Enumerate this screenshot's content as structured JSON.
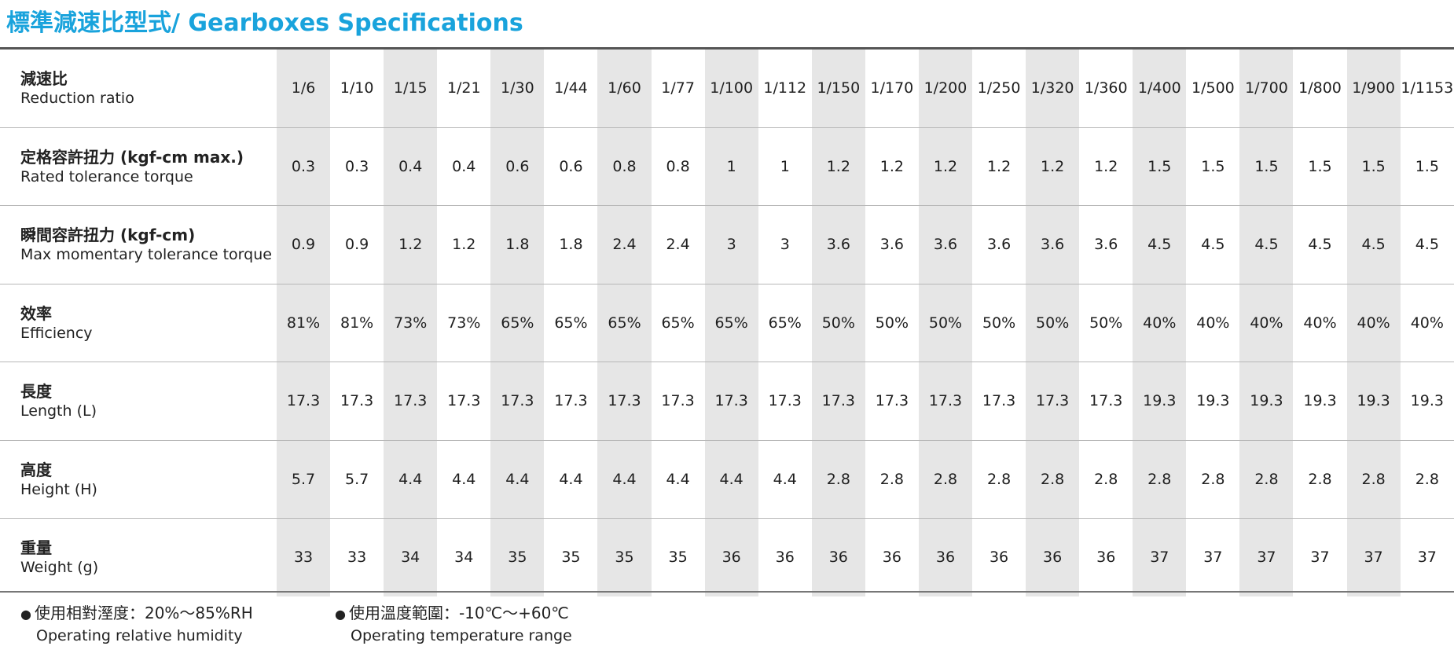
{
  "title": "標準減速比型式/ Gearboxes Specifications",
  "columns": [
    "1/6",
    "1/10",
    "1/15",
    "1/21",
    "1/30",
    "1/44",
    "1/60",
    "1/77",
    "1/100",
    "1/112",
    "1/150",
    "1/170",
    "1/200",
    "1/250",
    "1/320",
    "1/360",
    "1/400",
    "1/500",
    "1/700",
    "1/800",
    "1/900",
    "1/1153"
  ],
  "rows": [
    {
      "label_zh": "減速比",
      "label_en": "Reduction ratio"
    },
    {
      "label_zh": "定格容許扭力 (kgf-cm max.)",
      "label_en": "Rated tolerance torque",
      "values": [
        "0.3",
        "0.3",
        "0.4",
        "0.4",
        "0.6",
        "0.6",
        "0.8",
        "0.8",
        "1",
        "1",
        "1.2",
        "1.2",
        "1.2",
        "1.2",
        "1.2",
        "1.2",
        "1.5",
        "1.5",
        "1.5",
        "1.5",
        "1.5",
        "1.5"
      ]
    },
    {
      "label_zh": "瞬間容許扭力 (kgf-cm)",
      "label_en": "Max momentary tolerance torque",
      "values": [
        "0.9",
        "0.9",
        "1.2",
        "1.2",
        "1.8",
        "1.8",
        "2.4",
        "2.4",
        "3",
        "3",
        "3.6",
        "3.6",
        "3.6",
        "3.6",
        "3.6",
        "3.6",
        "4.5",
        "4.5",
        "4.5",
        "4.5",
        "4.5",
        "4.5"
      ]
    },
    {
      "label_zh": "效率",
      "label_en": "Efficiency",
      "values": [
        "81%",
        "81%",
        "73%",
        "73%",
        "65%",
        "65%",
        "65%",
        "65%",
        "65%",
        "65%",
        "50%",
        "50%",
        "50%",
        "50%",
        "50%",
        "50%",
        "40%",
        "40%",
        "40%",
        "40%",
        "40%",
        "40%"
      ]
    },
    {
      "label_zh": "長度",
      "label_en": "Length (L)",
      "values": [
        "17.3",
        "17.3",
        "17.3",
        "17.3",
        "17.3",
        "17.3",
        "17.3",
        "17.3",
        "17.3",
        "17.3",
        "17.3",
        "17.3",
        "17.3",
        "17.3",
        "17.3",
        "17.3",
        "19.3",
        "19.3",
        "19.3",
        "19.3",
        "19.3",
        "19.3"
      ]
    },
    {
      "label_zh": "高度",
      "label_en": "Height (H)",
      "values": [
        "5.7",
        "5.7",
        "4.4",
        "4.4",
        "4.4",
        "4.4",
        "4.4",
        "4.4",
        "4.4",
        "4.4",
        "2.8",
        "2.8",
        "2.8",
        "2.8",
        "2.8",
        "2.8",
        "2.8",
        "2.8",
        "2.8",
        "2.8",
        "2.8",
        "2.8"
      ]
    },
    {
      "label_zh": "重量",
      "label_en": "Weight (g)",
      "values": [
        "33",
        "33",
        "34",
        "34",
        "35",
        "35",
        "35",
        "35",
        "36",
        "36",
        "36",
        "36",
        "36",
        "36",
        "36",
        "36",
        "37",
        "37",
        "37",
        "37",
        "37",
        "37"
      ]
    }
  ],
  "notes": [
    {
      "zh": "使用相對溼度：20%～85%RH",
      "en": "Operating relative humidity"
    },
    {
      "zh": "使用溫度範圍：-10℃～+60℃",
      "en": "Operating temperature range"
    }
  ],
  "colors": {
    "title": "#19a3dc",
    "shade": "#e6e6e6"
  }
}
